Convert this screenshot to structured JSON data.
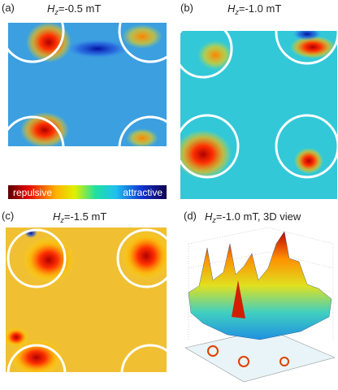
{
  "panels": [
    {
      "label": "(a)",
      "field": "H",
      "subscript": "z",
      "value": "=-0.5 mT"
    },
    {
      "label": "(b)",
      "field": "H",
      "subscript": "z",
      "value": "=-1.0 mT"
    },
    {
      "label": "(c)",
      "field": "H",
      "subscript": "z",
      "value": "=-1.5 mT"
    },
    {
      "label": "(d)",
      "field": "H",
      "subscript": "z",
      "value": "=-1.0 mT, 3D view"
    }
  ],
  "colorbar": {
    "low": "repulsive",
    "high": "attractive"
  }
}
